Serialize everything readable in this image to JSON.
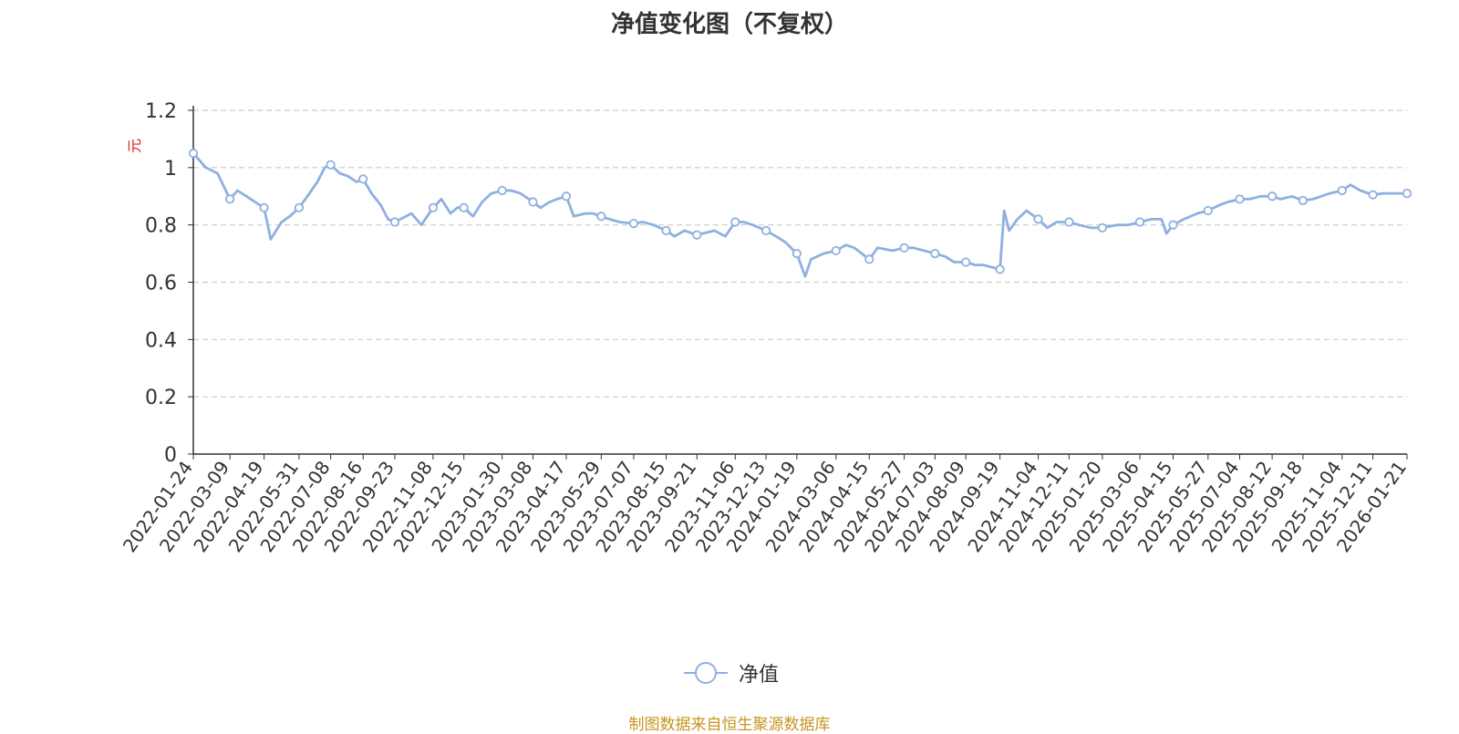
{
  "title": "净值变化图（不复权）",
  "footer": "制图数据来自恒生聚源数据库",
  "colors": {
    "line": "#8eb0e0",
    "grid": "#cccccc",
    "axis": "#333333",
    "ylabel": "#e02020",
    "footer": "#c8941f"
  },
  "chart_data": {
    "type": "line",
    "title": "净值变化图（不复权）",
    "ylabel": "元",
    "ylim": [
      0,
      1.2
    ],
    "yticks": [
      "0",
      "0.2",
      "0.4",
      "0.6",
      "0.8",
      "1",
      "1.2"
    ],
    "grid": true,
    "legend_position": "bottom-center",
    "xticks": [
      "2022-01-24",
      "2022-03-09",
      "2022-04-19",
      "2022-05-31",
      "2022-07-08",
      "2022-08-16",
      "2022-09-23",
      "2022-11-08",
      "2022-12-15",
      "2023-01-30",
      "2023-03-08",
      "2023-04-17",
      "2023-05-29",
      "2023-07-07",
      "2023-08-15",
      "2023-09-21",
      "2023-11-06",
      "2023-12-13",
      "2024-01-19",
      "2024-03-06",
      "2024-04-15",
      "2024-05-27",
      "2024-07-03",
      "2024-08-09",
      "2024-09-19",
      "2024-11-04",
      "2024-12-11",
      "2025-01-20",
      "2025-03-06",
      "2025-04-15",
      "2025-05-27",
      "2025-07-04",
      "2025-08-12",
      "2025-09-18",
      "2025-11-04",
      "2025-12-11",
      "2026-01-21"
    ],
    "series": [
      {
        "name": "净值",
        "x": [
          "2022-01-24",
          "2022-02-08",
          "2022-02-22",
          "2022-03-09",
          "2022-03-18",
          "2022-03-29",
          "2022-04-08",
          "2022-04-19",
          "2022-04-27",
          "2022-05-10",
          "2022-05-20",
          "2022-05-31",
          "2022-06-10",
          "2022-06-22",
          "2022-07-01",
          "2022-07-08",
          "2022-07-19",
          "2022-07-29",
          "2022-08-08",
          "2022-08-16",
          "2022-08-26",
          "2022-09-06",
          "2022-09-15",
          "2022-09-23",
          "2022-10-13",
          "2022-10-25",
          "2022-11-08",
          "2022-11-18",
          "2022-11-29",
          "2022-12-07",
          "2022-12-15",
          "2022-12-26",
          "2023-01-06",
          "2023-01-17",
          "2023-01-30",
          "2023-02-10",
          "2023-02-21",
          "2023-03-08",
          "2023-03-17",
          "2023-03-28",
          "2023-04-06",
          "2023-04-17",
          "2023-04-26",
          "2023-05-10",
          "2023-05-19",
          "2023-05-29",
          "2023-06-08",
          "2023-06-20",
          "2023-07-07",
          "2023-07-18",
          "2023-07-31",
          "2023-08-15",
          "2023-08-25",
          "2023-09-06",
          "2023-09-21",
          "2023-10-12",
          "2023-10-25",
          "2023-11-06",
          "2023-11-16",
          "2023-11-27",
          "2023-12-13",
          "2023-12-25",
          "2024-01-05",
          "2024-01-19",
          "2024-01-29",
          "2024-02-05",
          "2024-02-20",
          "2024-03-06",
          "2024-03-18",
          "2024-03-28",
          "2024-04-15",
          "2024-04-25",
          "2024-05-13",
          "2024-05-27",
          "2024-06-07",
          "2024-06-20",
          "2024-07-03",
          "2024-07-15",
          "2024-07-26",
          "2024-08-09",
          "2024-08-20",
          "2024-08-30",
          "2024-09-19",
          "2024-09-24",
          "2024-09-30",
          "2024-10-10",
          "2024-10-21",
          "2024-11-04",
          "2024-11-15",
          "2024-11-26",
          "2024-12-11",
          "2024-12-23",
          "2025-01-06",
          "2025-01-20",
          "2025-02-07",
          "2025-02-20",
          "2025-03-06",
          "2025-03-20",
          "2025-04-01",
          "2025-04-07",
          "2025-04-15",
          "2025-04-28",
          "2025-05-14",
          "2025-05-27",
          "2025-06-10",
          "2025-06-20",
          "2025-07-04",
          "2025-07-16",
          "2025-07-29",
          "2025-08-12",
          "2025-08-22",
          "2025-09-05",
          "2025-09-18",
          "2025-09-30",
          "2025-10-20",
          "2025-11-04",
          "2025-11-14",
          "2025-11-26",
          "2025-12-11",
          "2025-12-23",
          "2026-01-06",
          "2026-01-21"
        ],
        "values": [
          1.05,
          1.0,
          0.98,
          0.89,
          0.92,
          0.9,
          0.88,
          0.86,
          0.75,
          0.81,
          0.83,
          0.86,
          0.9,
          0.95,
          1.0,
          1.01,
          0.98,
          0.97,
          0.95,
          0.96,
          0.91,
          0.87,
          0.82,
          0.81,
          0.84,
          0.8,
          0.86,
          0.89,
          0.84,
          0.86,
          0.86,
          0.83,
          0.88,
          0.91,
          0.92,
          0.92,
          0.91,
          0.88,
          0.86,
          0.88,
          0.89,
          0.9,
          0.83,
          0.84,
          0.84,
          0.83,
          0.82,
          0.81,
          0.805,
          0.81,
          0.8,
          0.78,
          0.76,
          0.78,
          0.765,
          0.78,
          0.76,
          0.81,
          0.81,
          0.8,
          0.78,
          0.76,
          0.74,
          0.7,
          0.62,
          0.68,
          0.7,
          0.71,
          0.73,
          0.72,
          0.68,
          0.72,
          0.71,
          0.72,
          0.72,
          0.71,
          0.7,
          0.69,
          0.67,
          0.67,
          0.66,
          0.66,
          0.645,
          0.85,
          0.78,
          0.82,
          0.85,
          0.82,
          0.79,
          0.81,
          0.81,
          0.8,
          0.79,
          0.79,
          0.8,
          0.8,
          0.81,
          0.82,
          0.82,
          0.77,
          0.8,
          0.82,
          0.84,
          0.85,
          0.87,
          0.88,
          0.89,
          0.89,
          0.9,
          0.9,
          0.89,
          0.9,
          0.885,
          0.89,
          0.91,
          0.92,
          0.94,
          0.92,
          0.905,
          0.91,
          0.91,
          0.91
        ]
      }
    ]
  }
}
